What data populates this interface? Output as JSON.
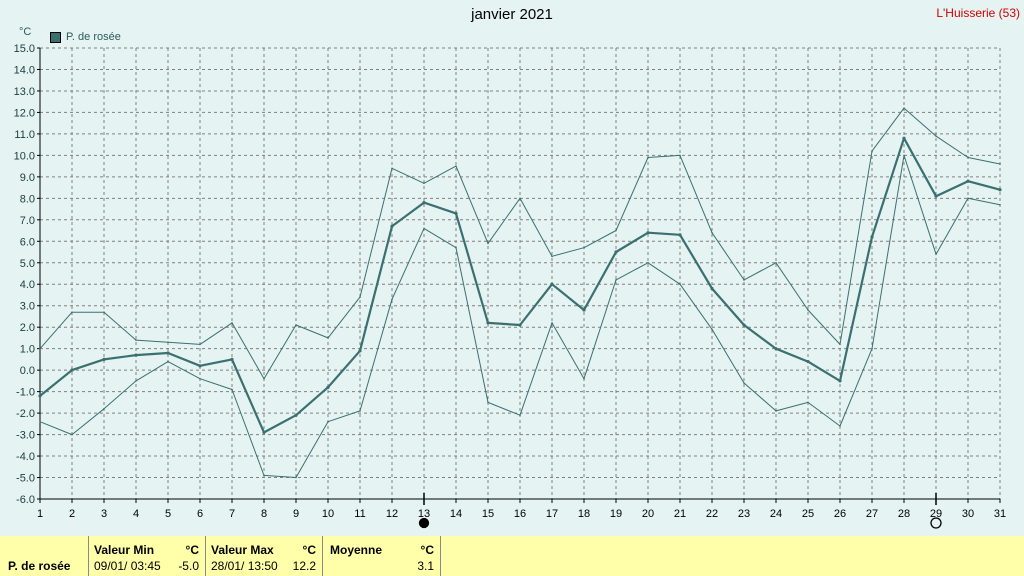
{
  "title": "janvier 2021",
  "location": "L'Huisserie (53)",
  "unit": "°C",
  "legend": "P. de rosée",
  "colors": {
    "background": "#e6f3f3",
    "series": "#3a7070",
    "grid": "#808080",
    "stats_bg": "#ffffaa",
    "location": "#d00000"
  },
  "markers": [
    {
      "day": 13,
      "icon": "new-moon-icon"
    },
    {
      "day": 29,
      "icon": "full-moon-icon"
    }
  ],
  "stats": {
    "row_label": "P. de rosée",
    "min_label": "Valeur Min",
    "min_unit": "°C",
    "min_date": "09/01/  03:45",
    "min_value": "-5.0",
    "max_label": "Valeur Max",
    "max_unit": "°C",
    "max_date": "28/01/  13:50",
    "max_value": "12.2",
    "avg_label": "Moyenne",
    "avg_unit": "°C",
    "avg_value": "3.1"
  },
  "chart_data": {
    "type": "line",
    "ylim": [
      -6,
      15
    ],
    "yticks": [
      "15.0",
      "14.0",
      "13.0",
      "12.0",
      "11.0",
      "10.0",
      "9.0",
      "8.0",
      "7.0",
      "6.0",
      "5.0",
      "4.0",
      "3.0",
      "2.0",
      "1.0",
      "0.0",
      "-1.0",
      "-2.0",
      "-3.0",
      "-4.0",
      "-5.0",
      "-6.0"
    ],
    "x": [
      "1",
      "2",
      "3",
      "4",
      "5",
      "6",
      "7",
      "8",
      "9",
      "10",
      "11",
      "12",
      "13",
      "14",
      "15",
      "16",
      "17",
      "18",
      "19",
      "20",
      "21",
      "22",
      "23",
      "24",
      "25",
      "26",
      "27",
      "28",
      "29",
      "30",
      "31"
    ],
    "series": [
      {
        "name": "P. de rosée",
        "style": "mean",
        "values": [
          -1.2,
          0.0,
          0.5,
          0.7,
          0.8,
          0.2,
          0.5,
          -2.9,
          -2.1,
          -0.8,
          0.9,
          6.7,
          7.8,
          7.3,
          2.2,
          2.1,
          4.0,
          2.8,
          5.5,
          6.4,
          6.3,
          3.8,
          2.1,
          1.0,
          0.4,
          -0.5,
          6.2,
          10.8,
          8.1,
          8.8,
          8.4
        ]
      },
      {
        "style": "max",
        "values": [
          1.0,
          2.7,
          2.7,
          1.4,
          1.3,
          1.2,
          2.2,
          -0.4,
          2.1,
          1.5,
          3.4,
          9.4,
          8.7,
          9.5,
          5.9,
          8.0,
          5.3,
          5.7,
          6.5,
          9.9,
          10.0,
          6.4,
          4.2,
          5.0,
          2.8,
          1.2,
          10.2,
          12.2,
          10.9,
          9.9,
          9.6
        ]
      },
      {
        "style": "min",
        "values": [
          -2.4,
          -3.0,
          -1.8,
          -0.5,
          0.4,
          -0.4,
          -0.9,
          -4.9,
          -5.0,
          -2.4,
          -1.9,
          3.3,
          6.6,
          5.7,
          -1.5,
          -2.1,
          2.2,
          -0.4,
          4.2,
          5.0,
          4.0,
          1.9,
          -0.6,
          -1.9,
          -1.5,
          -2.6,
          1.0,
          10.0,
          5.4,
          8.0,
          7.7
        ]
      }
    ]
  }
}
